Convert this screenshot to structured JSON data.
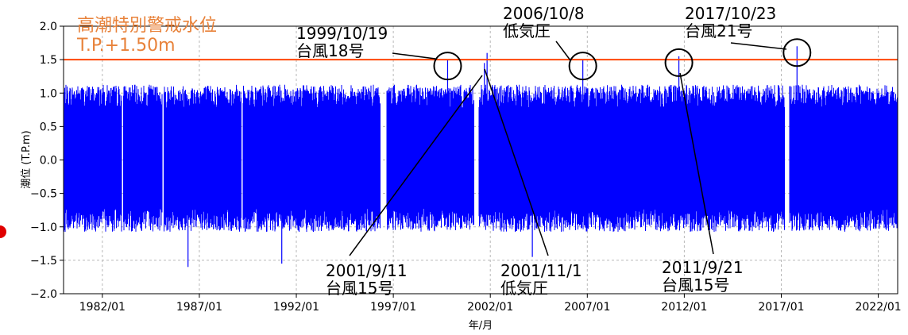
{
  "chart_data": {
    "type": "line",
    "xlabel": "年/月",
    "ylabel": "潮位 (T.P.m)",
    "xlim": [
      "1980/01",
      "2023/01"
    ],
    "ylim": [
      -2.0,
      2.0
    ],
    "grid": true,
    "x_tick_labels": [
      "1982/01",
      "1987/01",
      "1992/01",
      "1997/01",
      "2002/01",
      "2007/01",
      "2012/01",
      "2017/01",
      "2022/01"
    ],
    "y_tick_labels": [
      "−2.0",
      "−1.5",
      "−1.0",
      "−0.5",
      "0.0",
      "0.5",
      "1.0",
      "1.5",
      "2.0"
    ],
    "series": [
      {
        "color": "#0000ff",
        "typical_high": 0.95,
        "typical_low": -0.9,
        "data_gaps": [
          [
            "1983/01",
            "1983/02"
          ],
          [
            "1985/02",
            "1985/03"
          ],
          [
            "1989/03",
            "1989/04"
          ],
          [
            "1996/05",
            "1996/09"
          ],
          [
            "2001/03",
            "2001/06"
          ],
          [
            "2017/03",
            "2017/06"
          ]
        ],
        "peaks": [
          {
            "x": "1999/10/19",
            "y": 1.5
          },
          {
            "x": "2001/9/11",
            "y": 1.45
          },
          {
            "x": "2001/11/1",
            "y": 1.6
          },
          {
            "x": "2006/10/8",
            "y": 1.5
          },
          {
            "x": "2011/9/21",
            "y": 1.55
          },
          {
            "x": "2017/10/23",
            "y": 1.7
          }
        ],
        "troughs": [
          {
            "x": "1986/06",
            "y": -1.6
          },
          {
            "x": "1991/04",
            "y": -1.55
          },
          {
            "x": "2004/03",
            "y": -1.45
          }
        ]
      }
    ],
    "threshold": {
      "value": 1.5,
      "color": "#ff4500",
      "label_line1": "高潮特別警戒水位",
      "label_line2": "T.P.+1.50m"
    },
    "annotations": [
      {
        "date": "1999/10/19",
        "text1": "1999/10/19",
        "text2": "台風18号"
      },
      {
        "date": "2001/9/11",
        "text1": "2001/9/11",
        "text2": "台風15号"
      },
      {
        "date": "2001/11/1",
        "text1": "2001/11/1",
        "text2": "低気圧"
      },
      {
        "date": "2006/10/8",
        "text1": "2006/10/8",
        "text2": "低気圧"
      },
      {
        "date": "2011/9/21",
        "text1": "2011/9/21",
        "text2": "台風15号"
      },
      {
        "date": "2017/10/23",
        "text1": "2017/10/23",
        "text2": "台風21号"
      }
    ]
  }
}
